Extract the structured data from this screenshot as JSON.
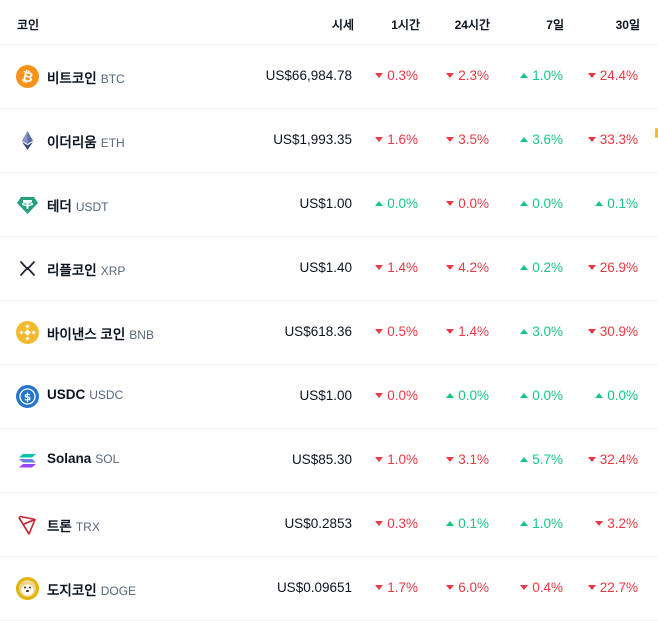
{
  "header": {
    "coin": "코인",
    "price": "시세",
    "h1": "1시간",
    "h24": "24시간",
    "d7": "7일",
    "d30": "30일"
  },
  "colors": {
    "up": "#16c784",
    "down": "#ea3943",
    "divider": "#eff2f5"
  },
  "rows": [
    {
      "name": "비트코인",
      "symbol": "BTC",
      "icon": "bitcoin-icon",
      "price": "US$66,984.78",
      "h1": {
        "dir": "down",
        "value": "0.3%"
      },
      "h24": {
        "dir": "down",
        "value": "2.3%"
      },
      "d7": {
        "dir": "up",
        "value": "1.0%"
      },
      "d30": {
        "dir": "down",
        "value": "24.4%"
      }
    },
    {
      "name": "이더리움",
      "symbol": "ETH",
      "icon": "ethereum-icon",
      "price": "US$1,993.35",
      "h1": {
        "dir": "down",
        "value": "1.6%"
      },
      "h24": {
        "dir": "down",
        "value": "3.5%"
      },
      "d7": {
        "dir": "up",
        "value": "3.6%"
      },
      "d30": {
        "dir": "down",
        "value": "33.3%"
      }
    },
    {
      "name": "테더",
      "symbol": "USDT",
      "icon": "tether-icon",
      "price": "US$1.00",
      "h1": {
        "dir": "up",
        "value": "0.0%"
      },
      "h24": {
        "dir": "down",
        "value": "0.0%"
      },
      "d7": {
        "dir": "up",
        "value": "0.0%"
      },
      "d30": {
        "dir": "up",
        "value": "0.1%"
      }
    },
    {
      "name": "리플코인",
      "symbol": "XRP",
      "icon": "xrp-icon",
      "price": "US$1.40",
      "h1": {
        "dir": "down",
        "value": "1.4%"
      },
      "h24": {
        "dir": "down",
        "value": "4.2%"
      },
      "d7": {
        "dir": "up",
        "value": "0.2%"
      },
      "d30": {
        "dir": "down",
        "value": "26.9%"
      }
    },
    {
      "name": "바이낸스 코인",
      "symbol": "BNB",
      "icon": "bnb-icon",
      "price": "US$618.36",
      "h1": {
        "dir": "down",
        "value": "0.5%"
      },
      "h24": {
        "dir": "down",
        "value": "1.4%"
      },
      "d7": {
        "dir": "up",
        "value": "3.0%"
      },
      "d30": {
        "dir": "down",
        "value": "30.9%"
      }
    },
    {
      "name": "USDC",
      "symbol": "USDC",
      "icon": "usdc-icon",
      "price": "US$1.00",
      "h1": {
        "dir": "down",
        "value": "0.0%"
      },
      "h24": {
        "dir": "up",
        "value": "0.0%"
      },
      "d7": {
        "dir": "up",
        "value": "0.0%"
      },
      "d30": {
        "dir": "up",
        "value": "0.0%"
      }
    },
    {
      "name": "Solana",
      "symbol": "SOL",
      "icon": "solana-icon",
      "price": "US$85.30",
      "h1": {
        "dir": "down",
        "value": "1.0%"
      },
      "h24": {
        "dir": "down",
        "value": "3.1%"
      },
      "d7": {
        "dir": "up",
        "value": "5.7%"
      },
      "d30": {
        "dir": "down",
        "value": "32.4%"
      }
    },
    {
      "name": "트론",
      "symbol": "TRX",
      "icon": "tron-icon",
      "price": "US$0.2853",
      "h1": {
        "dir": "down",
        "value": "0.3%"
      },
      "h24": {
        "dir": "up",
        "value": "0.1%"
      },
      "d7": {
        "dir": "up",
        "value": "1.0%"
      },
      "d30": {
        "dir": "down",
        "value": "3.2%"
      }
    },
    {
      "name": "도지코인",
      "symbol": "DOGE",
      "icon": "dogecoin-icon",
      "price": "US$0.09651",
      "h1": {
        "dir": "down",
        "value": "1.7%"
      },
      "h24": {
        "dir": "down",
        "value": "6.0%"
      },
      "d7": {
        "dir": "down",
        "value": "0.4%"
      },
      "d30": {
        "dir": "down",
        "value": "22.7%"
      }
    }
  ]
}
